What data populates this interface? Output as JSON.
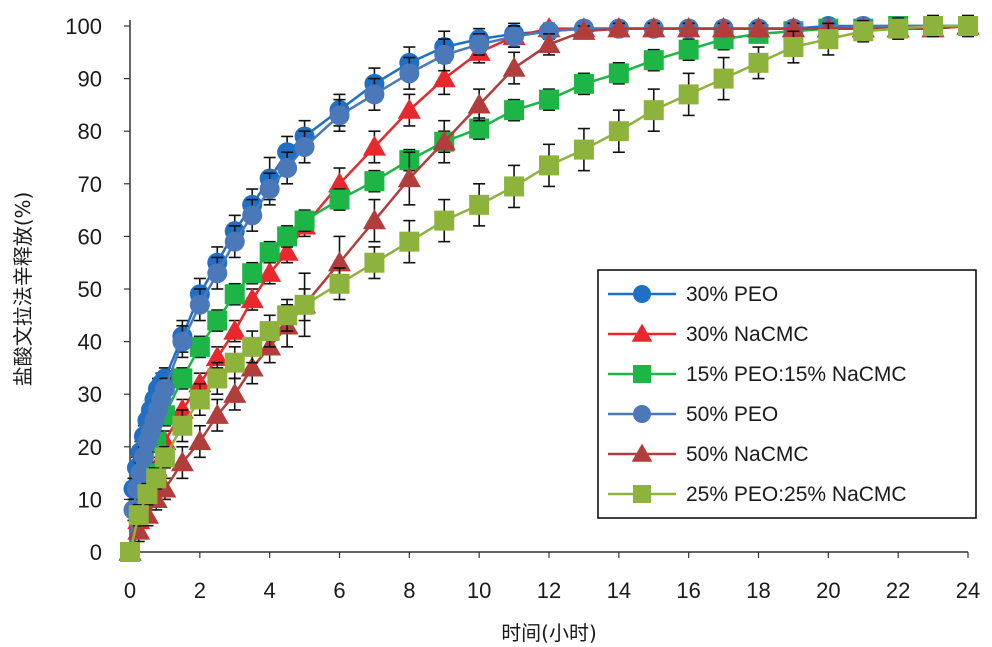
{
  "chart_data": {
    "type": "line",
    "xlabel": "时间(小时)",
    "ylabel": "盐酸文拉法辛释放(%)",
    "xlim": [
      0,
      24
    ],
    "ylim": [
      0,
      100
    ],
    "x_ticks": [
      "0",
      "2",
      "4",
      "6",
      "8",
      "10",
      "12",
      "14",
      "16",
      "18",
      "20",
      "22",
      "24"
    ],
    "y_ticks": [
      "0",
      "10",
      "20",
      "30",
      "40",
      "50",
      "60",
      "70",
      "80",
      "90",
      "100"
    ],
    "legend_position": "right",
    "series": [
      {
        "name": "30% PEO",
        "color": "#1f6fc5",
        "marker": "circle",
        "x": [
          0,
          0.1,
          0.2,
          0.3,
          0.4,
          0.5,
          0.6,
          0.7,
          0.8,
          0.9,
          1,
          1.5,
          2,
          2.5,
          3,
          3.5,
          4,
          4.5,
          5,
          6,
          7,
          8,
          9,
          10,
          11,
          12,
          13,
          14,
          15,
          16,
          17,
          18,
          19,
          20,
          21,
          22,
          23,
          24
        ],
        "y": [
          0,
          12,
          16,
          19,
          22,
          25,
          27,
          29,
          31,
          32,
          33,
          41,
          49,
          55,
          61,
          66,
          71,
          76,
          79,
          84,
          89,
          93,
          96,
          97.5,
          98.5,
          99,
          99.5,
          99.5,
          99.5,
          99.5,
          99.5,
          99.5,
          99.5,
          100,
          100,
          100,
          100,
          100
        ],
        "err": [
          0,
          2,
          2,
          2,
          2,
          2,
          2,
          2,
          2,
          2,
          2,
          3,
          3,
          3,
          3,
          3,
          4,
          3,
          3,
          3,
          3,
          3,
          3,
          2,
          2,
          1.5,
          1,
          1,
          1,
          1,
          1,
          1,
          1,
          1,
          1,
          1,
          1,
          1
        ]
      },
      {
        "name": "30% NaCMC",
        "color": "#e8282c",
        "marker": "triangle",
        "x": [
          0,
          0.25,
          0.5,
          0.75,
          1,
          1.5,
          2,
          2.5,
          3,
          3.5,
          4,
          4.5,
          5,
          6,
          7,
          8,
          9,
          10,
          11,
          12,
          13,
          14,
          15,
          16,
          17,
          18,
          19,
          20,
          21,
          22,
          23,
          24
        ],
        "y": [
          0,
          6,
          12,
          16,
          21,
          27,
          32,
          37,
          42,
          48,
          53,
          57,
          62,
          70,
          77,
          84,
          90,
          95,
          98,
          99.5,
          99.5,
          99.5,
          99.5,
          99.5,
          99.5,
          99.5,
          99.5,
          99.5,
          99.5,
          99.5,
          99.5,
          100
        ],
        "err": [
          0,
          2,
          2,
          2,
          2,
          2,
          2,
          2,
          2,
          2,
          2,
          2,
          2,
          3,
          3,
          3,
          3,
          2,
          2,
          1,
          1,
          1,
          1,
          1,
          1,
          1,
          1,
          1,
          1,
          1,
          1,
          1
        ]
      },
      {
        "name": "15% PEO:15% NaCMC",
        "color": "#1db546",
        "marker": "square",
        "x": [
          0,
          0.25,
          0.5,
          0.75,
          1,
          1.5,
          2,
          2.5,
          3,
          3.5,
          4,
          4.5,
          5,
          6,
          7,
          8,
          9,
          10,
          11,
          12,
          13,
          14,
          15,
          16,
          17,
          18,
          19,
          20,
          21,
          22,
          23,
          24
        ],
        "y": [
          0,
          8,
          15,
          21,
          26,
          33,
          39,
          44,
          49,
          53,
          57,
          60,
          63,
          67,
          70.5,
          74.5,
          78,
          80.5,
          84,
          86,
          89,
          91,
          93.5,
          95.5,
          97.5,
          98.5,
          99,
          99.5,
          99.5,
          100,
          100,
          100
        ],
        "err": [
          0,
          2,
          2,
          2,
          2,
          2,
          2,
          2,
          2,
          2,
          2,
          2,
          2,
          2,
          2,
          2,
          2,
          2,
          2,
          2,
          2,
          2,
          2,
          2,
          2,
          1,
          1,
          1,
          1,
          1,
          1,
          1
        ]
      },
      {
        "name": "50% PEO",
        "color": "#4a78b8",
        "marker": "circle",
        "x": [
          0,
          0.1,
          0.2,
          0.3,
          0.4,
          0.5,
          0.6,
          0.7,
          0.8,
          0.9,
          1,
          1.5,
          2,
          2.5,
          3,
          3.5,
          4,
          4.5,
          5,
          6,
          7,
          8,
          9,
          10,
          11,
          12,
          13,
          14,
          15,
          16,
          17,
          18,
          19,
          20,
          21,
          22,
          23,
          24
        ],
        "y": [
          0,
          8,
          12,
          15,
          18,
          21,
          23,
          25,
          27,
          29,
          31,
          40,
          47,
          53,
          59,
          64,
          69,
          73,
          77,
          83,
          87,
          91,
          94.5,
          96.5,
          98,
          99,
          99.5,
          99.5,
          99.5,
          99.5,
          99.5,
          99.5,
          99.5,
          99.5,
          100,
          100,
          100,
          100
        ],
        "err": [
          0,
          2,
          2,
          2,
          2,
          2,
          2,
          2,
          2,
          2,
          2,
          3,
          3,
          3,
          3,
          3,
          3,
          3,
          3,
          3,
          3,
          3,
          3,
          2,
          2,
          1.5,
          1,
          1,
          1,
          1,
          1,
          1,
          1,
          1,
          1,
          1,
          1,
          1
        ]
      },
      {
        "name": "50% NaCMC",
        "color": "#b13d3d",
        "marker": "triangle",
        "x": [
          0,
          0.25,
          0.5,
          0.75,
          1,
          1.5,
          2,
          2.5,
          3,
          3.5,
          4,
          4.5,
          5,
          6,
          7,
          8,
          9,
          10,
          11,
          12,
          13,
          14,
          15,
          16,
          17,
          18,
          19,
          20,
          21,
          22,
          23,
          24
        ],
        "y": [
          0,
          4,
          7,
          10,
          12,
          17,
          21,
          26,
          30,
          35,
          39,
          43,
          47,
          55,
          63,
          71,
          78,
          85,
          92,
          96.5,
          99,
          99.5,
          99.5,
          99.5,
          99.5,
          99.5,
          99.5,
          99.5,
          99.5,
          99.5,
          99.5,
          100
        ],
        "err": [
          0,
          2,
          2,
          2,
          2,
          3,
          3,
          3,
          3,
          3,
          3,
          4,
          6,
          5,
          4,
          5,
          4,
          3,
          3,
          2,
          1,
          1,
          1,
          1,
          1,
          1,
          1,
          1,
          1,
          1,
          1,
          1
        ]
      },
      {
        "name": "25% PEO:25% NaCMC",
        "color": "#8db33d",
        "marker": "square",
        "x": [
          0,
          0.25,
          0.5,
          0.75,
          1,
          1.5,
          2,
          2.5,
          3,
          3.5,
          4,
          4.5,
          5,
          6,
          7,
          8,
          9,
          10,
          11,
          12,
          13,
          14,
          15,
          16,
          17,
          18,
          19,
          20,
          21,
          22,
          23,
          24
        ],
        "y": [
          0,
          7,
          11,
          14,
          18,
          24,
          29,
          33,
          36,
          39,
          42,
          45,
          47,
          51,
          55,
          59,
          63,
          66,
          69.5,
          73.5,
          76.5,
          80,
          84,
          87,
          90,
          93,
          96,
          97.5,
          99,
          99.5,
          100,
          100
        ],
        "err": [
          0,
          2,
          2,
          2,
          2,
          3,
          3,
          3,
          3,
          3,
          3,
          3,
          3,
          3,
          3,
          4,
          4,
          4,
          4,
          4,
          4,
          4,
          4,
          4,
          4,
          3,
          3,
          3,
          2,
          2,
          2,
          2
        ]
      }
    ]
  }
}
